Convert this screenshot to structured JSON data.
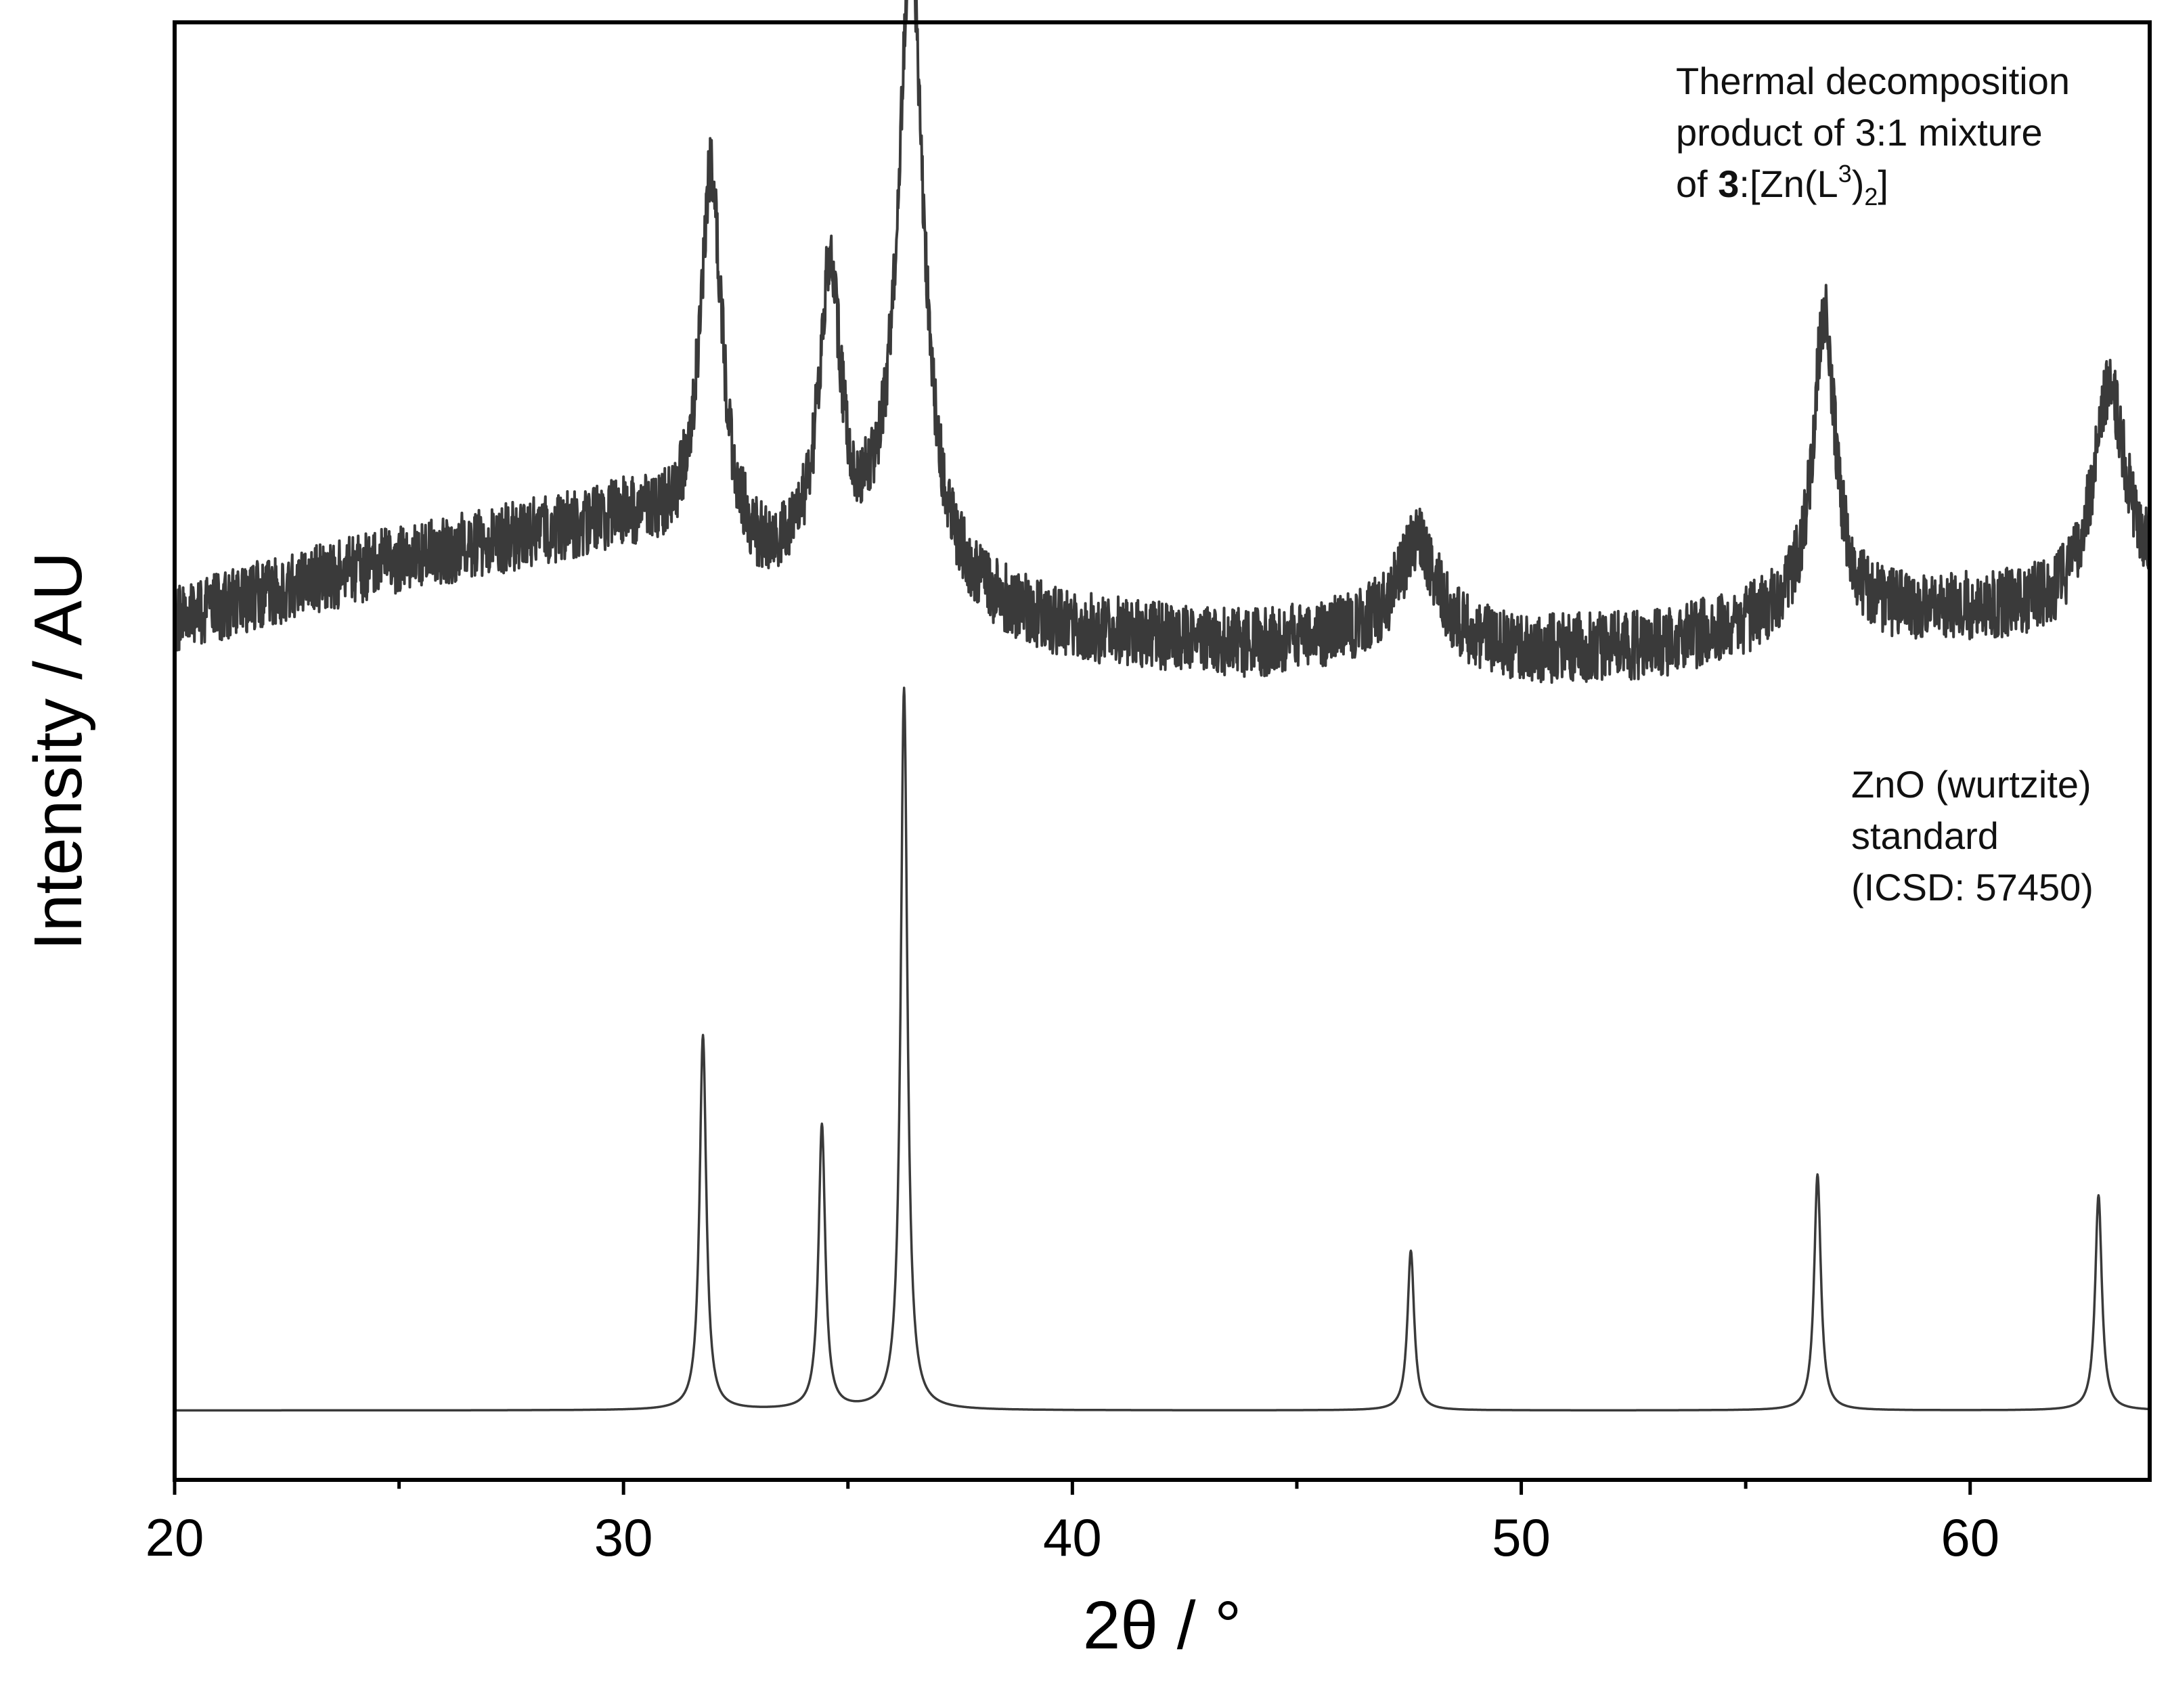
{
  "chart_data": {
    "type": "line",
    "xlabel": "2θ / °",
    "ylabel": "Intensity / AU",
    "xlim": [
      20,
      64
    ],
    "ylim": [
      0,
      2.1
    ],
    "x_ticks_major": [
      20,
      30,
      40,
      50,
      60
    ],
    "x_tick_labels": [
      "20",
      "30",
      "40",
      "50",
      "60"
    ],
    "x_ticks_minor": [
      25,
      35,
      45,
      55
    ],
    "grid": false,
    "line_color": "#3a3a3a",
    "annotations": [
      {
        "lines": [
          "Thermal decomposition",
          "product of 3:1 mixture",
          "of 3:[Zn(L3)2]"
        ],
        "attached_series": "Thermal decomposition product"
      },
      {
        "lines": [
          "ZnO (wurtzite)",
          "standard",
          "(ICSD: 57450)"
        ],
        "attached_series": "ZnO (wurtzite) standard"
      }
    ],
    "series": [
      {
        "baseline": 0.1,
        "noise_amplitude": 0,
        "peaks": [
          {
            "x": 31.77,
            "height": 0.54,
            "width": 0.09
          },
          {
            "x": 34.42,
            "height": 0.41,
            "width": 0.09
          },
          {
            "x": 36.25,
            "height": 1.04,
            "width": 0.09
          },
          {
            "x": 47.54,
            "height": 0.23,
            "width": 0.09
          },
          {
            "x": 56.6,
            "height": 0.34,
            "width": 0.09
          },
          {
            "x": 62.86,
            "height": 0.31,
            "width": 0.09
          }
        ]
      },
      {
        "baseline_points": [
          [
            20,
            1.24
          ],
          [
            24,
            1.31
          ],
          [
            28,
            1.36
          ],
          [
            30,
            1.38
          ],
          [
            31,
            1.36
          ],
          [
            33,
            1.3
          ],
          [
            36,
            1.3
          ],
          [
            38,
            1.25
          ],
          [
            40,
            1.22
          ],
          [
            44,
            1.2
          ],
          [
            47,
            1.22
          ],
          [
            50,
            1.19
          ],
          [
            53,
            1.2
          ],
          [
            56,
            1.24
          ],
          [
            60,
            1.25
          ],
          [
            62,
            1.25
          ],
          [
            64,
            1.29
          ]
        ],
        "noise_amplitude": 0.05,
        "peaks": [
          {
            "x": 31.95,
            "height": 0.55,
            "width": 0.3
          },
          {
            "x": 34.6,
            "height": 0.42,
            "width": 0.3
          },
          {
            "x": 36.4,
            "height": 0.9,
            "width": 0.35
          },
          {
            "x": 47.7,
            "height": 0.14,
            "width": 0.5
          },
          {
            "x": 56.75,
            "height": 0.44,
            "width": 0.3
          },
          {
            "x": 63.1,
            "height": 0.3,
            "width": 0.45
          }
        ]
      }
    ]
  }
}
